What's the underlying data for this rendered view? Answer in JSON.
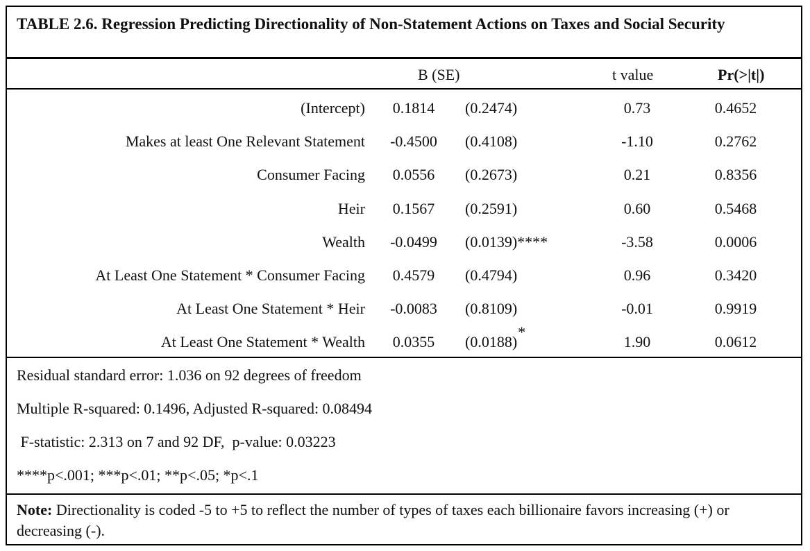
{
  "title": "TABLE 2.6. Regression Predicting Directionality of Non-Statement Actions on Taxes and Social Security",
  "headers": {
    "coef": "B (SE)",
    "tval": "t value",
    "pval": "Pr(>|t|)"
  },
  "rows": [
    {
      "label": "(Intercept)",
      "coef": "0.1814",
      "se": "(0.2474)",
      "sig": "",
      "sig_sup": "",
      "t": "0.73",
      "p": "0.4652"
    },
    {
      "label": "Makes at least One Relevant Statement",
      "coef": "-0.4500",
      "se": "(0.4108)",
      "sig": "",
      "sig_sup": "",
      "t": "-1.10",
      "p": "0.2762"
    },
    {
      "label": "Consumer Facing",
      "coef": "0.0556",
      "se": "(0.2673)",
      "sig": "",
      "sig_sup": "",
      "t": "0.21",
      "p": "0.8356"
    },
    {
      "label": "Heir",
      "coef": "0.1567",
      "se": "(0.2591)",
      "sig": "",
      "sig_sup": "",
      "t": "0.60",
      "p": "0.5468"
    },
    {
      "label": "Wealth",
      "coef": "-0.0499",
      "se": "(0.0139)",
      "sig": "****",
      "sig_sup": "",
      "t": "-3.58",
      "p": "0.0006"
    },
    {
      "label": "At Least One Statement * Consumer Facing",
      "coef": "0.4579",
      "se": "(0.4794)",
      "sig": "",
      "sig_sup": "",
      "t": "0.96",
      "p": "0.3420"
    },
    {
      "label": "At Least One Statement * Heir",
      "coef": "-0.0083",
      "se": "(0.8109)",
      "sig": "",
      "sig_sup": "",
      "t": "-0.01",
      "p": "0.9919"
    },
    {
      "label": "At Least One Statement * Wealth",
      "coef": "0.0355",
      "se": "(0.0188)",
      "sig": "",
      "sig_sup": "*",
      "t": "1.90",
      "p": "0.0612"
    }
  ],
  "footer": {
    "rse": "Residual standard error: 1.036 on 92 degrees of freedom",
    "r2": "Multiple R-squared:  0.1496,  Adjusted R-squared:  0.08494",
    "fstat": " F-statistic: 2.313 on 7 and 92 DF,  p-value: 0.03223",
    "sig_legend": "****p<.001; ***p<.01; **p<.05; *p<.1"
  },
  "note": {
    "label": "Note:",
    "text": " Directionality is coded -5 to +5 to reflect the number of types of taxes each billionaire favors increasing (+) or decreasing (-)."
  }
}
